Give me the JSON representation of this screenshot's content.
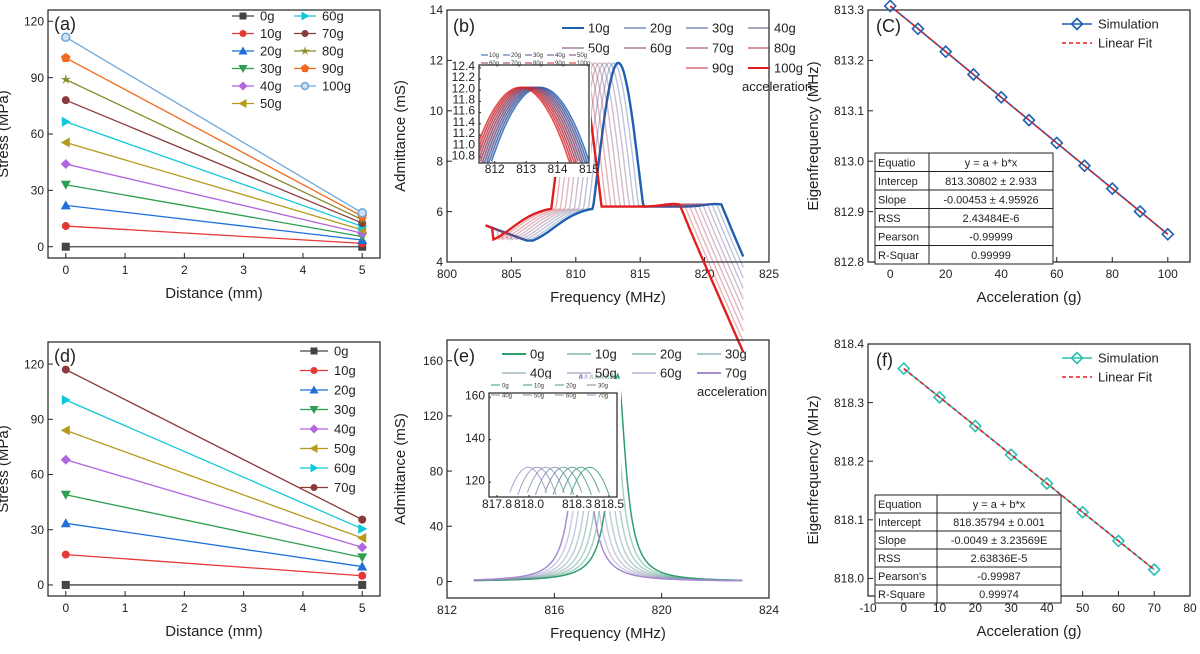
{
  "colors": {
    "g0": "#444444",
    "g10": "#e53935",
    "g20": "#1e6fd9",
    "g30": "#2e9e4f",
    "g40": "#b266e0",
    "g50": "#b59a1c",
    "g60": "#12c8d8",
    "g70": "#8b3a3a",
    "g80": "#8a8a2a",
    "g90": "#f26a1b",
    "g100": "#6fa8dc",
    "blue": "#1f5fb0",
    "red": "#e02020",
    "teal": "#2bbfb3",
    "green": "#2e9e6a",
    "purple": "#a78bd0"
  },
  "chart_data": [
    {
      "panel": "(a)",
      "type": "line",
      "xlabel": "Distance (mm)",
      "ylabel": "Stress (MPa)",
      "xlim": [
        -0.3,
        5.3
      ],
      "ylim": [
        -6,
        126
      ],
      "xticks": [
        "0",
        "1",
        "2",
        "3",
        "4",
        "5"
      ],
      "xtick_vals": [
        0,
        1,
        2,
        3,
        4,
        5
      ],
      "yticks": [
        "0",
        "30",
        "60",
        "90",
        "120"
      ],
      "ytick_vals": [
        0,
        30,
        60,
        90,
        120
      ],
      "x": [
        0,
        5
      ],
      "series": [
        {
          "name": "0g",
          "values": [
            0,
            0
          ],
          "marker": "square",
          "color": "g0"
        },
        {
          "name": "10g",
          "values": [
            11,
            1.8
          ],
          "marker": "circle",
          "color": "g10"
        },
        {
          "name": "20g",
          "values": [
            22,
            3.6
          ],
          "marker": "triangle",
          "color": "g20"
        },
        {
          "name": "30g",
          "values": [
            33,
            5.4
          ],
          "marker": "tridown",
          "color": "g30"
        },
        {
          "name": "40g",
          "values": [
            44,
            7.2
          ],
          "marker": "diamond",
          "color": "g40"
        },
        {
          "name": "50g",
          "values": [
            55.5,
            9
          ],
          "marker": "trileft",
          "color": "g50"
        },
        {
          "name": "60g",
          "values": [
            66.5,
            10.8
          ],
          "marker": "triright",
          "color": "g60"
        },
        {
          "name": "70g",
          "values": [
            78,
            12.6
          ],
          "marker": "circle",
          "color": "g70"
        },
        {
          "name": "80g",
          "values": [
            89,
            14.4
          ],
          "marker": "star",
          "color": "g80"
        },
        {
          "name": "90g",
          "values": [
            100.5,
            16.2
          ],
          "marker": "pentagon",
          "color": "g90"
        },
        {
          "name": "100g",
          "values": [
            111.5,
            18
          ],
          "marker": "ball",
          "color": "g100"
        }
      ]
    },
    {
      "panel": "(b)",
      "type": "line",
      "xlabel": "Frequency (MHz)",
      "ylabel": "Admittance (mS)",
      "xlim": [
        800,
        825
      ],
      "ylim": [
        4,
        14
      ],
      "xticks": [
        "800",
        "805",
        "810",
        "815",
        "820",
        "825"
      ],
      "xtick_vals": [
        800,
        805,
        810,
        815,
        820,
        825
      ],
      "yticks": [
        "4",
        "6",
        "8",
        "10",
        "12",
        "14"
      ],
      "ytick_vals": [
        4,
        6,
        8,
        10,
        12,
        14
      ],
      "series_names": [
        "10g",
        "20g",
        "30g",
        "40g",
        "50g",
        "60g",
        "70g",
        "80g",
        "90g",
        "100g"
      ],
      "curve": {
        "x_range": [
          803,
          823
        ],
        "peak_freq_10g": 813.3,
        "peak_shift_per_series": -0.045,
        "peak": 11.9,
        "min": 4.85,
        "end": 4.9
      },
      "legend_note": "acceleration",
      "inset": {
        "xlim": [
          811.5,
          815
        ],
        "ylim": [
          10.7,
          12.45
        ],
        "xticks": [
          "812",
          "813",
          "814",
          "815"
        ],
        "xtick_vals": [
          812,
          813,
          814,
          815
        ],
        "yticks": [
          "10.8",
          "11.0",
          "11.2",
          "11.4",
          "11.6",
          "11.8",
          "12.0",
          "12.2",
          "12.4"
        ],
        "ytick_vals": [
          10.8,
          11.0,
          11.2,
          11.4,
          11.6,
          11.8,
          12.0,
          12.2,
          12.4
        ]
      }
    },
    {
      "panel": "(C)",
      "type": "line",
      "xlabel": "Acceleration (g)",
      "ylabel": "Eigenfrequency (MHz)",
      "xlim": [
        -8,
        108
      ],
      "ylim": [
        812.8,
        813.3
      ],
      "xticks": [
        "0",
        "20",
        "40",
        "60",
        "80",
        "100"
      ],
      "xtick_vals": [
        0,
        20,
        40,
        60,
        80,
        100
      ],
      "yticks": [
        "812.8",
        "812.9",
        "813.0",
        "813.1",
        "813.2",
        "813.3"
      ],
      "ytick_vals": [
        812.8,
        812.9,
        813.0,
        813.1,
        813.2,
        813.3
      ],
      "x": [
        0,
        10,
        20,
        30,
        40,
        50,
        60,
        70,
        80,
        90,
        100
      ],
      "series": [
        {
          "name": "Simulation",
          "values": [
            813.308,
            813.2627,
            813.2174,
            813.1721,
            813.1268,
            813.0815,
            813.0362,
            812.9909,
            812.9456,
            812.9003,
            812.855
          ],
          "color": "blue"
        },
        {
          "name": "Linear Fit",
          "values": [
            813.308,
            812.855
          ],
          "x": [
            0,
            100
          ],
          "color": "red"
        }
      ],
      "fit_table": [
        [
          "Equatio",
          "y = a + b*x"
        ],
        [
          "Intercep",
          "813.30802 ± 2.933"
        ],
        [
          "Slope",
          "-0.00453 ± 4.95926"
        ],
        [
          "RSS",
          "2.43484E-6"
        ],
        [
          "Pearson",
          "-0.99999"
        ],
        [
          "R-Squar",
          "0.99999"
        ]
      ]
    },
    {
      "panel": "(d)",
      "type": "line",
      "xlabel": "Distance (mm)",
      "ylabel": "Stress (MPa)",
      "xlim": [
        -0.3,
        5.3
      ],
      "ylim": [
        -6,
        132
      ],
      "xticks": [
        "0",
        "1",
        "2",
        "3",
        "4",
        "5"
      ],
      "xtick_vals": [
        0,
        1,
        2,
        3,
        4,
        5
      ],
      "yticks": [
        "0",
        "30",
        "60",
        "90",
        "120"
      ],
      "ytick_vals": [
        0,
        30,
        60,
        90,
        120
      ],
      "x": [
        0,
        5
      ],
      "series": [
        {
          "name": "0g",
          "values": [
            0,
            0
          ],
          "marker": "square",
          "color": "g0"
        },
        {
          "name": "10g",
          "values": [
            16.5,
            5
          ],
          "marker": "circle",
          "color": "g10"
        },
        {
          "name": "20g",
          "values": [
            33.5,
            10
          ],
          "marker": "triangle",
          "color": "g20"
        },
        {
          "name": "30g",
          "values": [
            49,
            15
          ],
          "marker": "tridown",
          "color": "g30"
        },
        {
          "name": "40g",
          "values": [
            68,
            20.5
          ],
          "marker": "diamond",
          "color": "g40"
        },
        {
          "name": "50g",
          "values": [
            84,
            25.5
          ],
          "marker": "trileft",
          "color": "g50"
        },
        {
          "name": "60g",
          "values": [
            100.5,
            30.5
          ],
          "marker": "triright",
          "color": "g60"
        },
        {
          "name": "70g",
          "values": [
            117,
            35.5
          ],
          "marker": "circle",
          "color": "g70"
        }
      ]
    },
    {
      "panel": "(e)",
      "type": "line",
      "xlabel": "Frequency (MHz)",
      "ylabel": "Admittance (mS)",
      "xlim": [
        812,
        824
      ],
      "ylim": [
        -12,
        175
      ],
      "xticks": [
        "812",
        "816",
        "820",
        "824"
      ],
      "xtick_vals": [
        812,
        816,
        820,
        824
      ],
      "yticks": [
        "0",
        "40",
        "80",
        "120",
        "160"
      ],
      "ytick_vals": [
        0,
        40,
        80,
        120,
        160
      ],
      "series_names": [
        "0g",
        "10g",
        "20g",
        "30g",
        "40g",
        "50g",
        "60g",
        "70g"
      ],
      "curve": {
        "x_range": [
          813,
          823
        ],
        "peak_freq_0g": 818.36,
        "peak_shift_per_series": -0.049,
        "peak": 150,
        "half_width": 0.35
      },
      "legend_note": "acceleration",
      "inset": {
        "xlim": [
          817.75,
          818.55
        ],
        "ylim": [
          113,
          162
        ],
        "xticks": [
          "817.8",
          "818.0",
          "818.3",
          "818.5"
        ],
        "xtick_vals": [
          817.8,
          818.0,
          818.3,
          818.5
        ],
        "yticks": [
          "120",
          "140",
          "160"
        ],
        "ytick_vals": [
          120,
          140,
          160
        ],
        "series_names": [
          "0g",
          "10g",
          "20g",
          "30g",
          "40g",
          "50g",
          "60g",
          "70g"
        ]
      }
    },
    {
      "panel": "(f)",
      "type": "line",
      "xlabel": "Acceleration (g)",
      "ylabel": "Eigenfrequency (MHz)",
      "xlim": [
        -10,
        80
      ],
      "ylim": [
        817.97,
        818.4
      ],
      "xticks": [
        "-10",
        "0",
        "10",
        "20",
        "30",
        "40",
        "50",
        "60",
        "70",
        "80"
      ],
      "xtick_vals": [
        -10,
        0,
        10,
        20,
        30,
        40,
        50,
        60,
        70,
        80
      ],
      "yticks": [
        "818.0",
        "818.1",
        "818.2",
        "818.3",
        "818.4"
      ],
      "ytick_vals": [
        818.0,
        818.1,
        818.2,
        818.3,
        818.4
      ],
      "x": [
        0,
        10,
        20,
        30,
        40,
        50,
        60,
        70
      ],
      "series": [
        {
          "name": "Simulation",
          "values": [
            818.358,
            818.309,
            818.26,
            818.211,
            818.162,
            818.113,
            818.064,
            818.015
          ],
          "color": "teal"
        },
        {
          "name": "Linear Fit",
          "values": [
            818.358,
            818.015
          ],
          "x": [
            0,
            70
          ],
          "color": "red"
        }
      ],
      "fit_table": [
        [
          "Equation",
          "y = a + b*x"
        ],
        [
          "Intercept",
          "818.35794 ± 0.001"
        ],
        [
          "Slope",
          "-0.0049 ± 3.23569E"
        ],
        [
          "RSS",
          "2.63836E-5"
        ],
        [
          "Pearson's",
          "-0.99987"
        ],
        [
          "R-Square",
          "0.99974"
        ]
      ]
    }
  ]
}
